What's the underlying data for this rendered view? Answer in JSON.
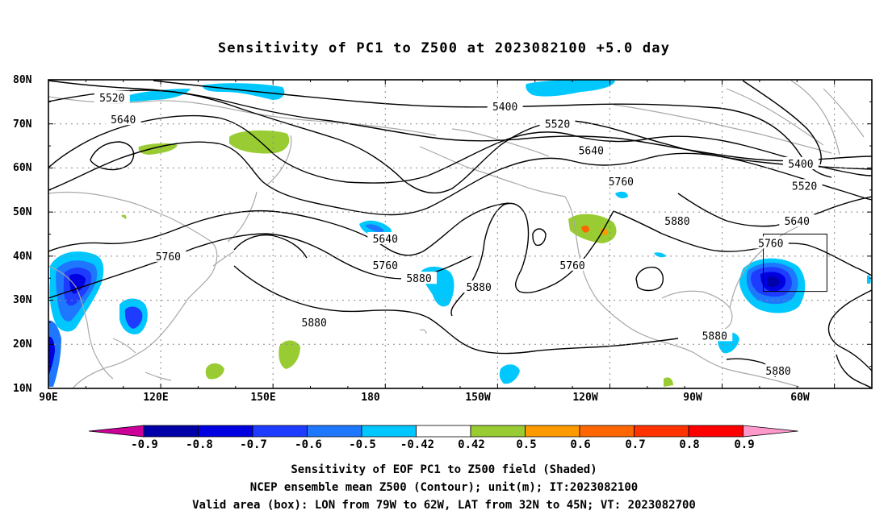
{
  "title": "Sensitivity of PC1 to Z500 at 2023082100 +5.0 day",
  "axes": {
    "lat_labels": [
      "80N",
      "70N",
      "60N",
      "50N",
      "40N",
      "30N",
      "20N",
      "10N"
    ],
    "lon_labels": [
      "90E",
      "120E",
      "150E",
      "180",
      "150W",
      "120W",
      "90W",
      "60W"
    ]
  },
  "contours": {
    "labels": [
      {
        "text": "5520",
        "lon": 107,
        "lat": 76
      },
      {
        "text": "5640",
        "lon": 110,
        "lat": 71
      },
      {
        "text": "5400",
        "lon": 212,
        "lat": 74
      },
      {
        "text": "5520",
        "lon": 226,
        "lat": 70
      },
      {
        "text": "5640",
        "lon": 235,
        "lat": 64
      },
      {
        "text": "5760",
        "lon": 243,
        "lat": 57
      },
      {
        "text": "5880",
        "lon": 258,
        "lat": 48
      },
      {
        "text": "5400",
        "lon": 291,
        "lat": 61
      },
      {
        "text": "5520",
        "lon": 292,
        "lat": 56
      },
      {
        "text": "5640",
        "lon": 290,
        "lat": 48
      },
      {
        "text": "5760",
        "lon": 283,
        "lat": 43
      },
      {
        "text": "5760",
        "lon": 122,
        "lat": 40
      },
      {
        "text": "5640",
        "lon": 180,
        "lat": 44
      },
      {
        "text": "5760",
        "lon": 180,
        "lat": 38
      },
      {
        "text": "5880",
        "lon": 189,
        "lat": 35
      },
      {
        "text": "5880",
        "lon": 205,
        "lat": 33
      },
      {
        "text": "5760",
        "lon": 230,
        "lat": 38
      },
      {
        "text": "5880",
        "lon": 161,
        "lat": 25
      },
      {
        "text": "5880",
        "lon": 268,
        "lat": 22
      },
      {
        "text": "5880",
        "lon": 285,
        "lat": 14
      }
    ]
  },
  "valid_box": {
    "lon_west": "79W",
    "lon_east": "62W",
    "lat_south": "32N",
    "lat_north": "45N"
  },
  "colorbar": {
    "labels": [
      "-0.9",
      "-0.8",
      "-0.7",
      "-0.6",
      "-0.5",
      "-0.42",
      "0.42",
      "0.5",
      "0.6",
      "0.7",
      "0.8",
      "0.9"
    ],
    "colors": [
      "#cc0099",
      "#0000a8",
      "#0000e0",
      "#1e3cff",
      "#1e78ff",
      "#00c8ff",
      "#ffffff",
      "#99cc33",
      "#ff9900",
      "#ff6600",
      "#ff3300",
      "#ff0000",
      "#ff99cc"
    ]
  },
  "captions": [
    "Sensitivity of EOF PC1 to Z500 field (Shaded)",
    "NCEP ensemble mean Z500 (Contour); unit(m); IT:2023082100",
    "Valid area (box): LON from 79W to 62W, LAT from 32N to 45N; VT: 2023082700"
  ]
}
